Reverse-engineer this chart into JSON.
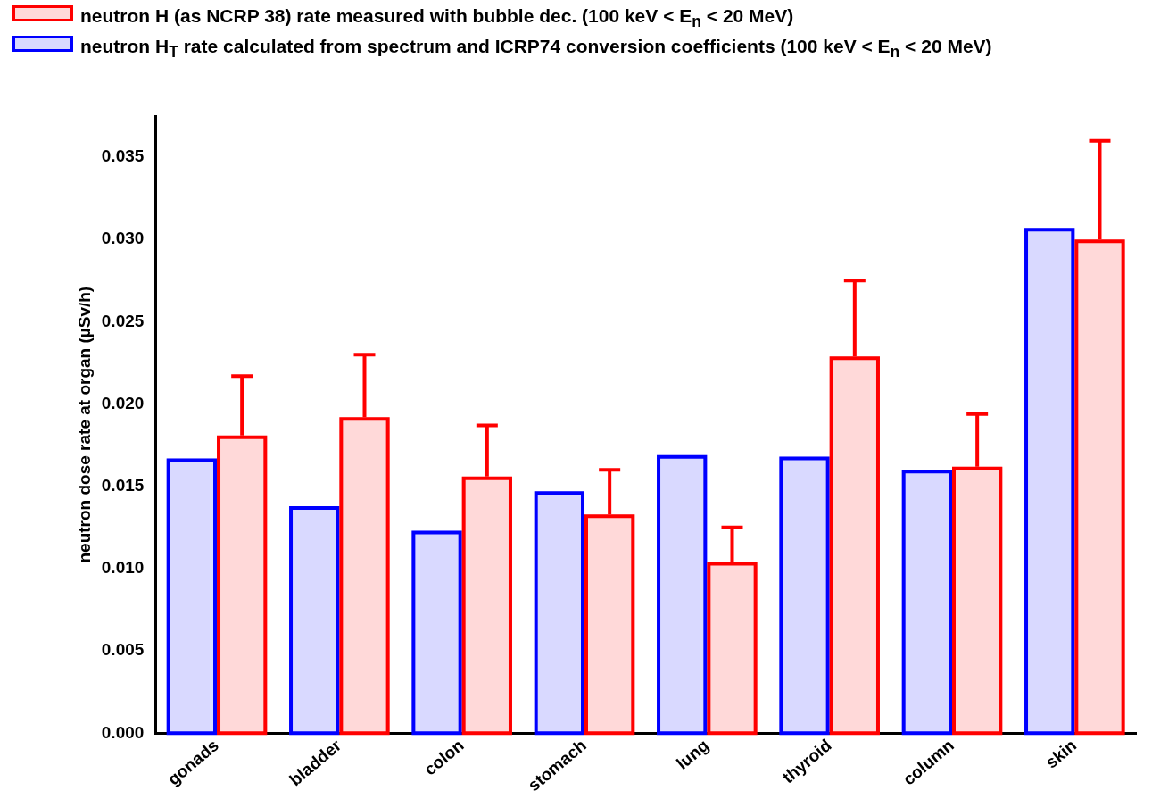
{
  "chart_data": {
    "type": "bar",
    "ylabel": "neutron dose rate at organ (µSv/h)",
    "categories": [
      "gonads",
      "bladder",
      "colon",
      "stomach",
      "lung",
      "thyroid",
      "column",
      "skin"
    ],
    "series": [
      {
        "name": "neutron H$_{T}$ rate calculated from spectrum and ICRP74 conversion coefficients (100 keV < E$_{n}$ < 20 MeV)",
        "color": "#0000ff",
        "values": [
          0.0167,
          0.0138,
          0.0123,
          0.0147,
          0.0169,
          0.0168,
          0.016,
          0.0307
        ]
      },
      {
        "name": "neutron H (as NCRP 38) rate measured with bubble dec. (100 keV < E$_{n}$ < 20 MeV)",
        "color": "#ff0000",
        "values": [
          0.0181,
          0.0192,
          0.0156,
          0.0133,
          0.0104,
          0.0229,
          0.0162,
          0.03
        ],
        "errors": [
          [
            0.0181,
            0.0217
          ],
          [
            0.0192,
            0.023
          ],
          [
            0.0156,
            0.0187
          ],
          [
            0.0133,
            0.016
          ],
          [
            0.0104,
            0.0125
          ],
          [
            0.0229,
            0.0275
          ],
          [
            0.0162,
            0.0194
          ],
          [
            0.03,
            0.036
          ]
        ]
      }
    ],
    "ylim": [
      0,
      0.0375
    ],
    "yticks": [
      {
        "value": 0,
        "label": "0.000"
      },
      {
        "value": 0.005,
        "label": "0.005"
      },
      {
        "value": 0.01,
        "label": "0.010"
      },
      {
        "value": 0.015,
        "label": "0.015"
      },
      {
        "value": 0.02,
        "label": "0.020"
      },
      {
        "value": 0.025,
        "label": "0.025"
      },
      {
        "value": 0.03,
        "label": "0.030"
      },
      {
        "value": 0.035,
        "label": "0.035"
      }
    ],
    "grid": false,
    "legend": "top left"
  }
}
